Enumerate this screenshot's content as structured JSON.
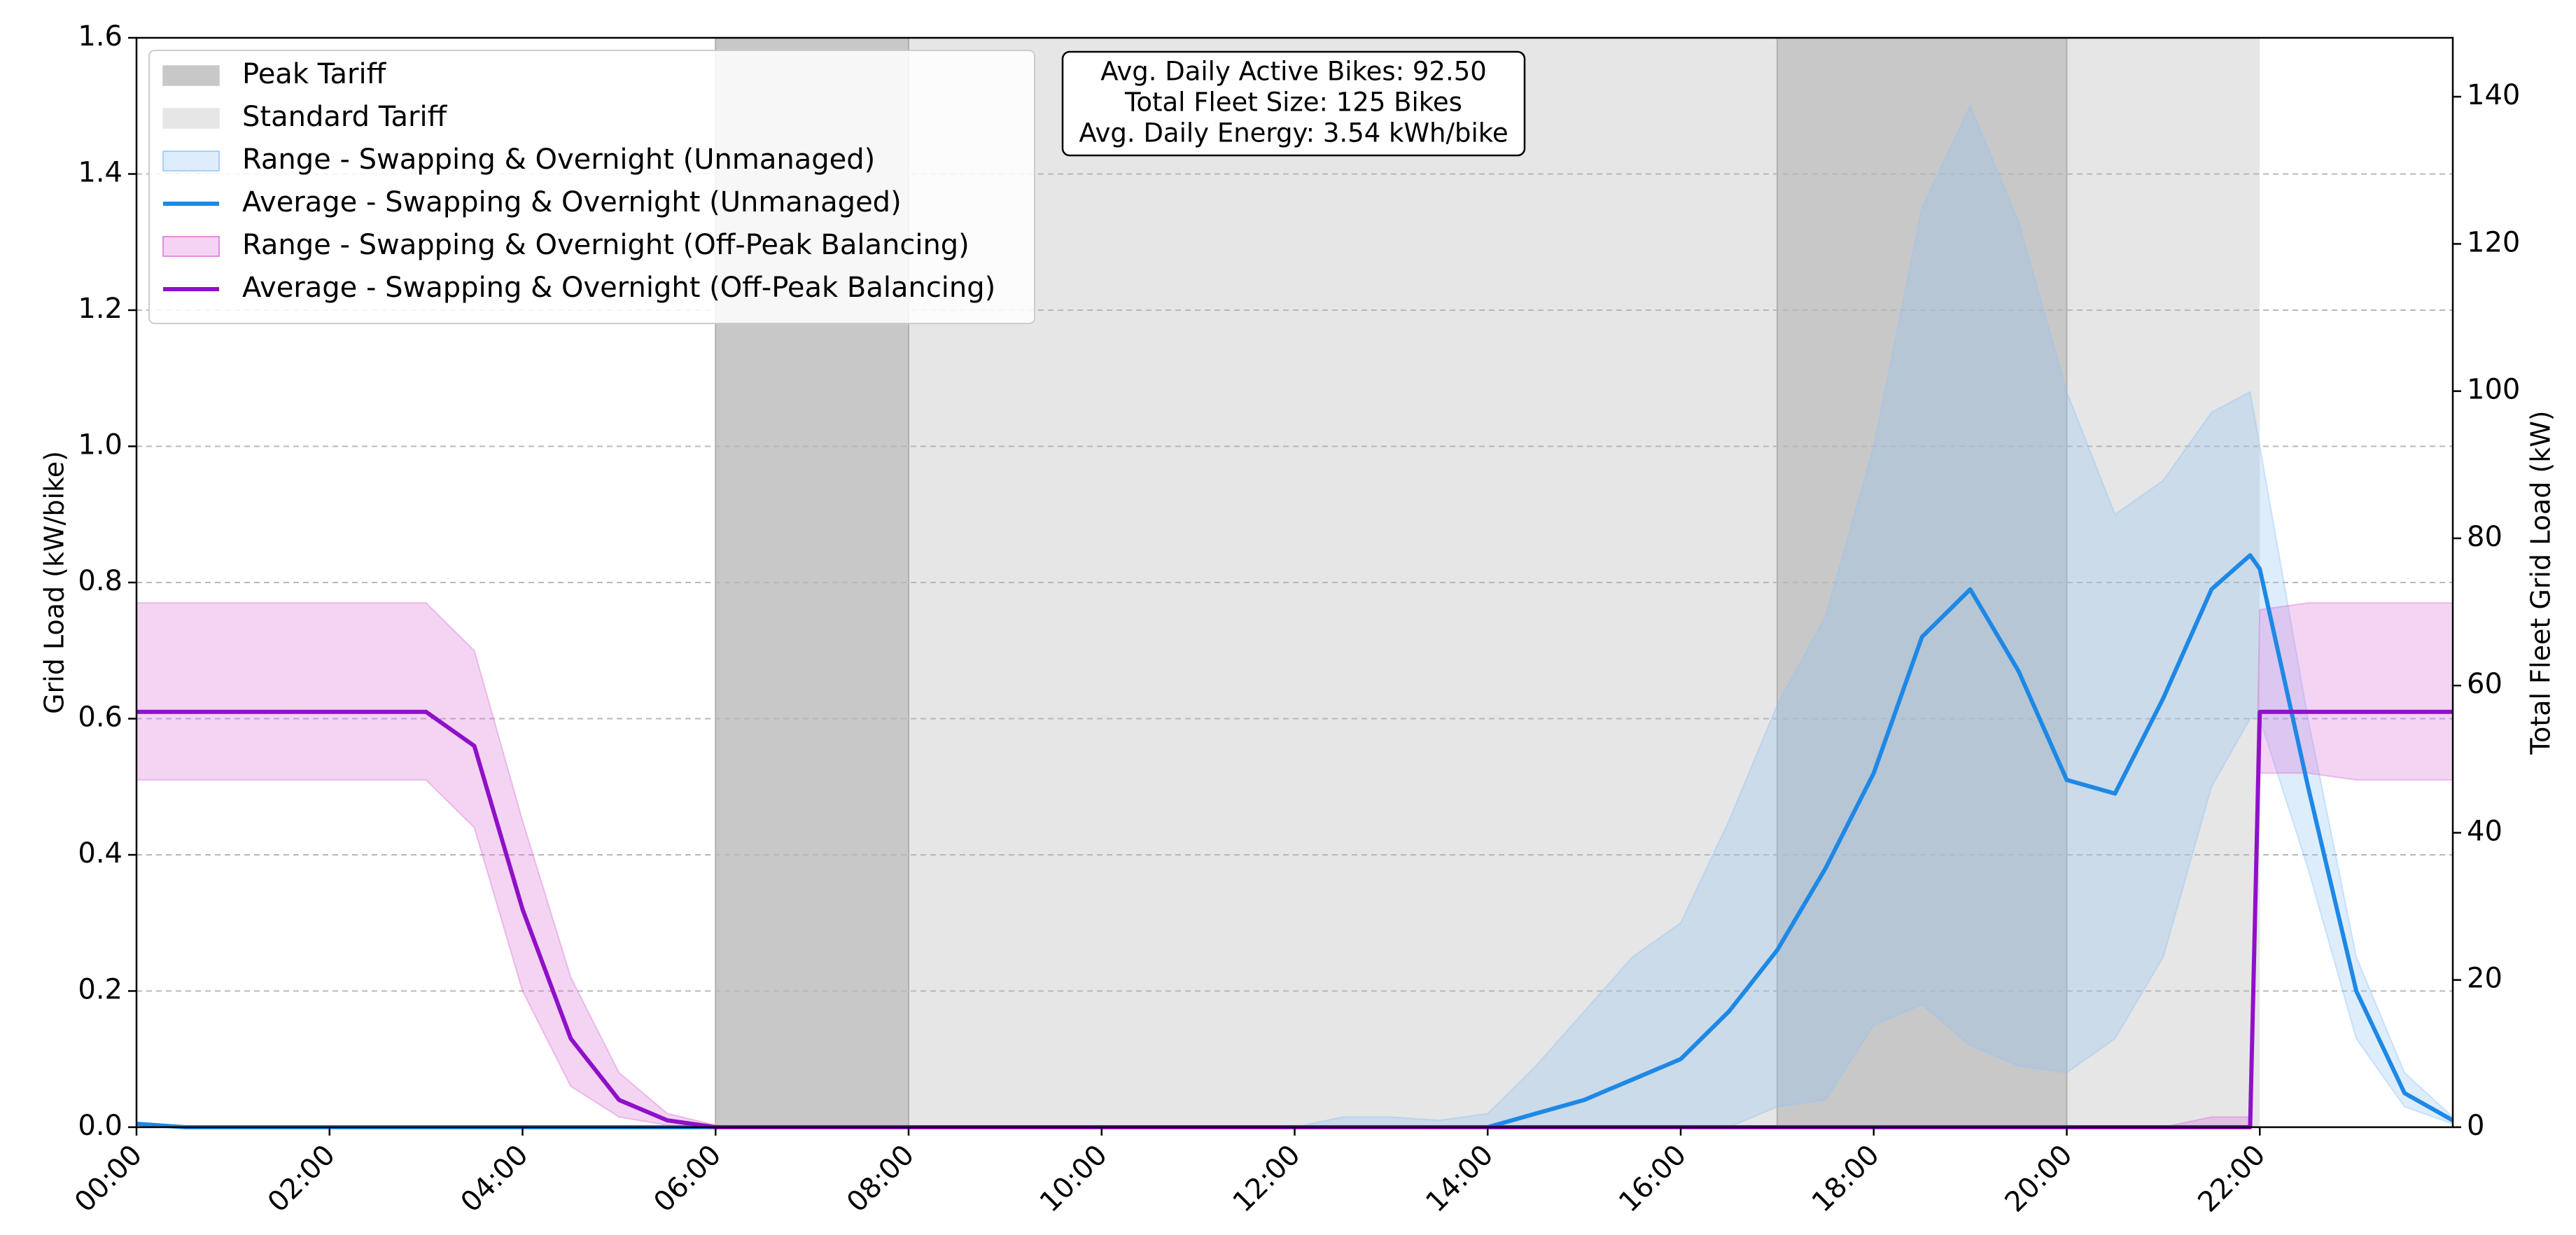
{
  "chart_data": {
    "type": "line",
    "y_label": "Grid Load (kW/bike)",
    "y2_label": "Total Fleet Grid Load (kW)",
    "annotation": [
      "Avg. Daily Active Bikes: 92.50",
      "Total Fleet Size: 125 Bikes",
      "Avg. Daily Energy: 3.54 kWh/bike"
    ],
    "xlim": [
      0,
      24
    ],
    "xticks": [
      {
        "value": 0,
        "label": "00:00"
      },
      {
        "value": 2,
        "label": "02:00"
      },
      {
        "value": 4,
        "label": "04:00"
      },
      {
        "value": 6,
        "label": "06:00"
      },
      {
        "value": 8,
        "label": "08:00"
      },
      {
        "value": 10,
        "label": "10:00"
      },
      {
        "value": 12,
        "label": "12:00"
      },
      {
        "value": 14,
        "label": "14:00"
      },
      {
        "value": 16,
        "label": "16:00"
      },
      {
        "value": 18,
        "label": "18:00"
      },
      {
        "value": 20,
        "label": "20:00"
      },
      {
        "value": 22,
        "label": "22:00"
      }
    ],
    "ylim": [
      0,
      1.6
    ],
    "yticks": [
      {
        "value": 0,
        "label": "0.0"
      },
      0.2,
      0.4,
      0.6,
      0.8,
      {
        "value": 1,
        "label": "1.0"
      },
      1.2,
      1.4,
      1.6
    ],
    "y2lim": [
      0,
      148
    ],
    "y2ticks": [
      0,
      20,
      40,
      60,
      80,
      100,
      120,
      140
    ],
    "grid": true,
    "legend": "upper left",
    "bands": [
      {
        "name": "Peak Tariff",
        "color": "#c8c8c8",
        "ranges": [
          [
            6,
            8
          ],
          [
            17,
            20
          ]
        ]
      },
      {
        "name": "Standard Tariff",
        "color": "#e6e6e6",
        "ranges": [
          [
            8,
            17
          ],
          [
            20,
            22
          ]
        ]
      }
    ],
    "x": [
      0,
      0.5,
      1,
      1.5,
      2,
      2.5,
      3,
      3.5,
      4,
      4.5,
      5,
      5.5,
      6,
      6.5,
      7,
      7.5,
      8,
      8.5,
      9,
      9.5,
      10,
      10.5,
      11,
      11.5,
      12,
      12.5,
      13,
      13.5,
      14,
      14.5,
      15,
      15.5,
      16,
      16.5,
      17,
      17.5,
      18,
      18.5,
      19,
      19.5,
      20,
      20.5,
      21,
      21.5,
      21.9,
      22,
      22.5,
      23,
      23.5,
      24
    ],
    "ranges": [
      {
        "name": "Range - Swapping & Overnight (Unmanaged)",
        "color": "#90c4f5",
        "low": [
          0,
          0,
          0,
          0,
          0,
          0,
          0,
          0,
          0,
          0,
          0,
          0,
          0,
          0,
          0,
          0,
          0,
          0,
          0,
          0,
          0,
          0,
          0,
          0,
          0,
          0,
          0,
          0,
          0,
          0,
          0,
          0,
          0,
          0,
          0.03,
          0.04,
          0.15,
          0.18,
          0.12,
          0.09,
          0.08,
          0.13,
          0.25,
          0.5,
          0.6,
          0.6,
          0.38,
          0.13,
          0.03,
          0.005
        ],
        "high": [
          0,
          0,
          0,
          0,
          0,
          0,
          0,
          0,
          0,
          0,
          0,
          0,
          0,
          0,
          0,
          0,
          0,
          0,
          0,
          0,
          0,
          0,
          0,
          0,
          0,
          0.015,
          0.015,
          0.01,
          0.02,
          0.09,
          0.17,
          0.25,
          0.3,
          0.45,
          0.62,
          0.75,
          1.0,
          1.35,
          1.5,
          1.33,
          1.08,
          0.9,
          0.95,
          1.05,
          1.08,
          1.0,
          0.6,
          0.25,
          0.08,
          0.015
        ]
      },
      {
        "name": "Range - Swapping & Overnight (Off-Peak Balancing)",
        "color": "#da70d6",
        "low": [
          0.51,
          0.51,
          0.51,
          0.51,
          0.51,
          0.51,
          0.51,
          0.44,
          0.2,
          0.06,
          0.015,
          0.003,
          0,
          0,
          0,
          0,
          0,
          0,
          0,
          0,
          0,
          0,
          0,
          0,
          0,
          0,
          0,
          0,
          0,
          0,
          0,
          0,
          0,
          0,
          0,
          0,
          0,
          0,
          0,
          0,
          0,
          0,
          0,
          0,
          0,
          0.52,
          0.52,
          0.51,
          0.51,
          0.51
        ],
        "high": [
          0.77,
          0.77,
          0.77,
          0.77,
          0.77,
          0.77,
          0.77,
          0.7,
          0.45,
          0.22,
          0.08,
          0.02,
          0.003,
          0,
          0,
          0,
          0,
          0,
          0,
          0,
          0,
          0,
          0,
          0,
          0,
          0,
          0,
          0,
          0,
          0,
          0,
          0,
          0,
          0,
          0,
          0,
          0,
          0,
          0,
          0,
          0,
          0,
          0,
          0.015,
          0.015,
          0.76,
          0.77,
          0.77,
          0.77,
          0.77
        ]
      }
    ],
    "series": [
      {
        "name": "Average - Swapping & Overnight (Unmanaged)",
        "color": "#1e88e5",
        "values": [
          0.005,
          0,
          0,
          0,
          0,
          0,
          0,
          0,
          0,
          0,
          0,
          0,
          0,
          0,
          0,
          0,
          0,
          0,
          0,
          0,
          0,
          0,
          0,
          0,
          0,
          0,
          0,
          0,
          0,
          0.02,
          0.04,
          0.07,
          0.1,
          0.17,
          0.26,
          0.38,
          0.52,
          0.72,
          0.79,
          0.67,
          0.51,
          0.49,
          0.63,
          0.79,
          0.84,
          0.82,
          0.5,
          0.2,
          0.05,
          0.01
        ]
      },
      {
        "name": "Average - Swapping & Overnight (Off-Peak Balancing)",
        "color": "#9010c8",
        "values": [
          0.61,
          0.61,
          0.61,
          0.61,
          0.61,
          0.61,
          0.61,
          0.56,
          0.32,
          0.13,
          0.04,
          0.01,
          0,
          0,
          0,
          0,
          0,
          0,
          0,
          0,
          0,
          0,
          0,
          0,
          0,
          0,
          0,
          0,
          0,
          0,
          0,
          0,
          0,
          0,
          0,
          0,
          0,
          0,
          0,
          0,
          0,
          0,
          0,
          0,
          0,
          0.61,
          0.61,
          0.61,
          0.61,
          0.61
        ]
      }
    ]
  }
}
